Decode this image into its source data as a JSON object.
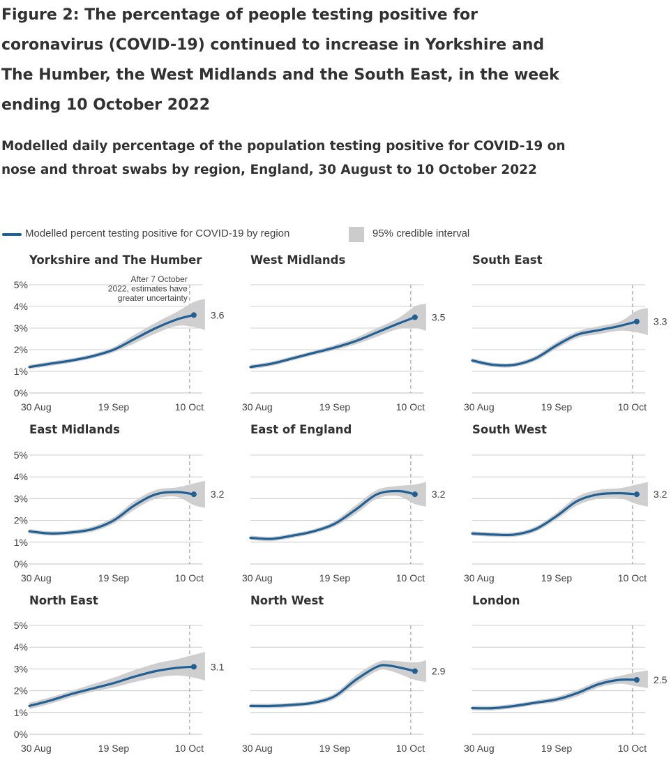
{
  "figure": {
    "title": "Figure 2: The percentage of people testing positive for coronavirus (COVID-19) continued to increase in Yorkshire and The Humber, the West Midlands and the South East, in the week ending 10 October 2022",
    "subtitle": "Modelled daily percentage of the population testing positive for COVID-19 on nose and throat swabs by region, England, 30 August to 10 October 2022"
  },
  "legend": {
    "line_label": "Modelled percent testing positive for COVID-19 by region",
    "interval_label": "95% credible interval"
  },
  "colors": {
    "line": "#206095",
    "interval": "#cccccc",
    "grid": "#cccccc",
    "text": "#323132"
  },
  "annotation": "After 7 October 2022, estimates have greater uncertainty",
  "chart_data": {
    "type": "line",
    "x_ticks": [
      "30 Aug",
      "19 Sep",
      "10 Oct"
    ],
    "y_ticks": [
      "0%",
      "1%",
      "2%",
      "3%",
      "4%",
      "5%"
    ],
    "ylim": [
      0,
      5
    ],
    "x_range": [
      "2022-08-30",
      "2022-10-10"
    ],
    "uncertainty_from": "2022-10-07",
    "grid": "horizontal",
    "legend_position": "top",
    "panels": [
      {
        "name": "Yorkshire and The Humber",
        "end_label": "3.6",
        "dates": [
          "2022-08-30",
          "2022-09-04",
          "2022-09-09",
          "2022-09-14",
          "2022-09-19",
          "2022-09-24",
          "2022-09-29",
          "2022-10-04",
          "2022-10-08"
        ],
        "values": [
          1.2,
          1.35,
          1.5,
          1.7,
          2.0,
          2.5,
          3.0,
          3.4,
          3.6
        ],
        "lower": [
          1.1,
          1.25,
          1.4,
          1.6,
          1.88,
          2.3,
          2.75,
          3.1,
          3.05
        ],
        "upper": [
          1.3,
          1.45,
          1.6,
          1.8,
          2.12,
          2.7,
          3.25,
          3.75,
          4.2
        ]
      },
      {
        "name": "West Midlands",
        "end_label": "3.5",
        "dates": [
          "2022-08-30",
          "2022-09-04",
          "2022-09-09",
          "2022-09-14",
          "2022-09-19",
          "2022-09-24",
          "2022-09-29",
          "2022-10-04",
          "2022-10-08"
        ],
        "values": [
          1.2,
          1.35,
          1.6,
          1.85,
          2.1,
          2.4,
          2.8,
          3.2,
          3.5
        ],
        "lower": [
          1.1,
          1.25,
          1.5,
          1.75,
          1.98,
          2.25,
          2.6,
          2.95,
          3.0
        ],
        "upper": [
          1.3,
          1.45,
          1.7,
          1.95,
          2.22,
          2.55,
          3.0,
          3.45,
          4.0
        ]
      },
      {
        "name": "South East",
        "end_label": "3.3",
        "dates": [
          "2022-08-30",
          "2022-09-04",
          "2022-09-09",
          "2022-09-14",
          "2022-09-19",
          "2022-09-24",
          "2022-09-29",
          "2022-10-04",
          "2022-10-08"
        ],
        "values": [
          1.5,
          1.3,
          1.3,
          1.6,
          2.2,
          2.7,
          2.9,
          3.1,
          3.3
        ],
        "lower": [
          1.4,
          1.2,
          1.2,
          1.48,
          2.05,
          2.55,
          2.72,
          2.88,
          2.8
        ],
        "upper": [
          1.6,
          1.4,
          1.4,
          1.72,
          2.35,
          2.85,
          3.08,
          3.3,
          3.8
        ]
      },
      {
        "name": "East Midlands",
        "end_label": "3.2",
        "dates": [
          "2022-08-30",
          "2022-09-04",
          "2022-09-09",
          "2022-09-14",
          "2022-09-19",
          "2022-09-24",
          "2022-09-29",
          "2022-10-04",
          "2022-10-08"
        ],
        "values": [
          1.5,
          1.4,
          1.45,
          1.6,
          2.0,
          2.7,
          3.2,
          3.3,
          3.2
        ],
        "lower": [
          1.4,
          1.3,
          1.35,
          1.48,
          1.85,
          2.5,
          3.0,
          3.08,
          2.7
        ],
        "upper": [
          1.6,
          1.5,
          1.55,
          1.72,
          2.15,
          2.9,
          3.4,
          3.52,
          3.7
        ]
      },
      {
        "name": "East of England",
        "end_label": "3.2",
        "dates": [
          "2022-08-30",
          "2022-09-04",
          "2022-09-09",
          "2022-09-14",
          "2022-09-19",
          "2022-09-24",
          "2022-09-29",
          "2022-10-04",
          "2022-10-08"
        ],
        "values": [
          1.2,
          1.15,
          1.3,
          1.5,
          1.85,
          2.5,
          3.2,
          3.35,
          3.2
        ],
        "lower": [
          1.1,
          1.05,
          1.2,
          1.4,
          1.72,
          2.3,
          3.0,
          3.12,
          2.75
        ],
        "upper": [
          1.3,
          1.25,
          1.4,
          1.6,
          1.98,
          2.7,
          3.4,
          3.58,
          3.65
        ]
      },
      {
        "name": "South West",
        "end_label": "3.2",
        "dates": [
          "2022-08-30",
          "2022-09-04",
          "2022-09-09",
          "2022-09-14",
          "2022-09-19",
          "2022-09-24",
          "2022-09-29",
          "2022-10-04",
          "2022-10-08"
        ],
        "values": [
          1.4,
          1.35,
          1.35,
          1.6,
          2.2,
          2.9,
          3.2,
          3.25,
          3.2
        ],
        "lower": [
          1.3,
          1.25,
          1.25,
          1.48,
          2.05,
          2.7,
          3.0,
          3.02,
          2.75
        ],
        "upper": [
          1.5,
          1.45,
          1.45,
          1.72,
          2.35,
          3.1,
          3.4,
          3.48,
          3.65
        ]
      },
      {
        "name": "North East",
        "end_label": "3.1",
        "dates": [
          "2022-08-30",
          "2022-09-04",
          "2022-09-09",
          "2022-09-14",
          "2022-09-19",
          "2022-09-24",
          "2022-09-29",
          "2022-10-04",
          "2022-10-08"
        ],
        "values": [
          1.3,
          1.55,
          1.85,
          2.1,
          2.35,
          2.65,
          2.9,
          3.05,
          3.1
        ],
        "lower": [
          1.15,
          1.4,
          1.7,
          1.95,
          2.15,
          2.4,
          2.6,
          2.7,
          2.6
        ],
        "upper": [
          1.45,
          1.7,
          2.0,
          2.3,
          2.6,
          2.95,
          3.25,
          3.45,
          3.65
        ]
      },
      {
        "name": "North West",
        "end_label": "2.9",
        "dates": [
          "2022-08-30",
          "2022-09-04",
          "2022-09-09",
          "2022-09-14",
          "2022-09-19",
          "2022-09-24",
          "2022-09-29",
          "2022-10-02",
          "2022-10-08"
        ],
        "values": [
          1.3,
          1.3,
          1.35,
          1.45,
          1.75,
          2.5,
          3.1,
          3.15,
          2.9
        ],
        "lower": [
          1.2,
          1.2,
          1.25,
          1.35,
          1.62,
          2.3,
          2.9,
          2.92,
          2.5
        ],
        "upper": [
          1.4,
          1.4,
          1.45,
          1.55,
          1.88,
          2.7,
          3.3,
          3.38,
          3.3
        ]
      },
      {
        "name": "London",
        "end_label": "2.5",
        "dates": [
          "2022-08-30",
          "2022-09-04",
          "2022-09-09",
          "2022-09-14",
          "2022-09-19",
          "2022-09-24",
          "2022-09-29",
          "2022-10-04",
          "2022-10-08"
        ],
        "values": [
          1.2,
          1.2,
          1.3,
          1.45,
          1.6,
          1.9,
          2.3,
          2.5,
          2.5
        ],
        "lower": [
          1.1,
          1.1,
          1.2,
          1.35,
          1.48,
          1.75,
          2.15,
          2.32,
          2.2
        ],
        "upper": [
          1.3,
          1.3,
          1.4,
          1.55,
          1.72,
          2.05,
          2.45,
          2.68,
          2.85
        ]
      }
    ]
  }
}
